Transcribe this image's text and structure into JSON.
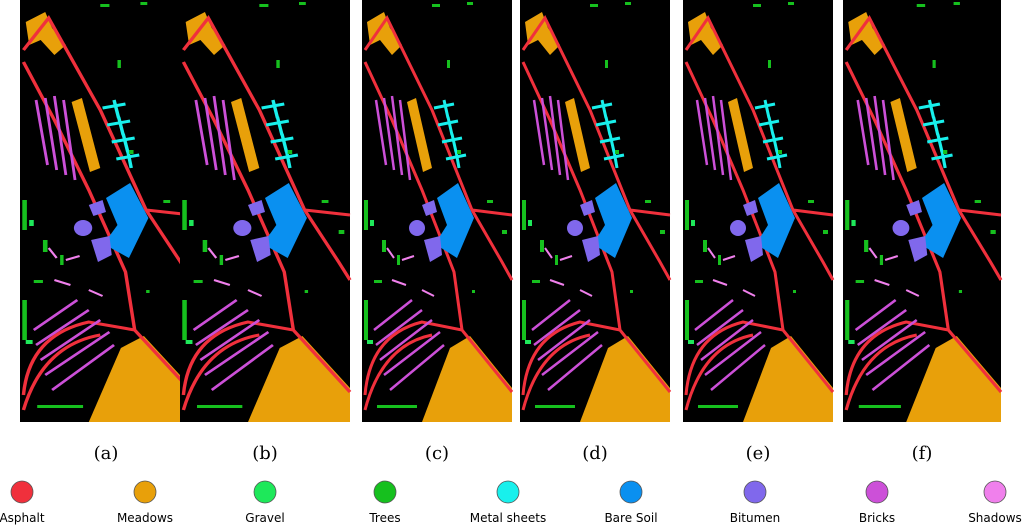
{
  "panels": [
    {
      "label": "(a)"
    },
    {
      "label": "(b)"
    },
    {
      "label": "(c)"
    },
    {
      "label": "(d)"
    },
    {
      "label": "(e)"
    },
    {
      "label": "(f)"
    }
  ],
  "legend": [
    {
      "name": "Asphalt",
      "color": "#f0303c"
    },
    {
      "name": "Meadows",
      "color": "#e8a00a"
    },
    {
      "name": "Gravel",
      "color": "#1ee85a"
    },
    {
      "name": "Trees",
      "color": "#16c01e"
    },
    {
      "name": "Metal sheets",
      "color": "#18f0ec"
    },
    {
      "name": "Bare Soil",
      "color": "#0a90f0"
    },
    {
      "name": "Bitumen",
      "color": "#8068ec"
    },
    {
      "name": "Bricks",
      "color": "#cc50d8"
    },
    {
      "name": "Shadows",
      "color": "#f080ec"
    }
  ]
}
